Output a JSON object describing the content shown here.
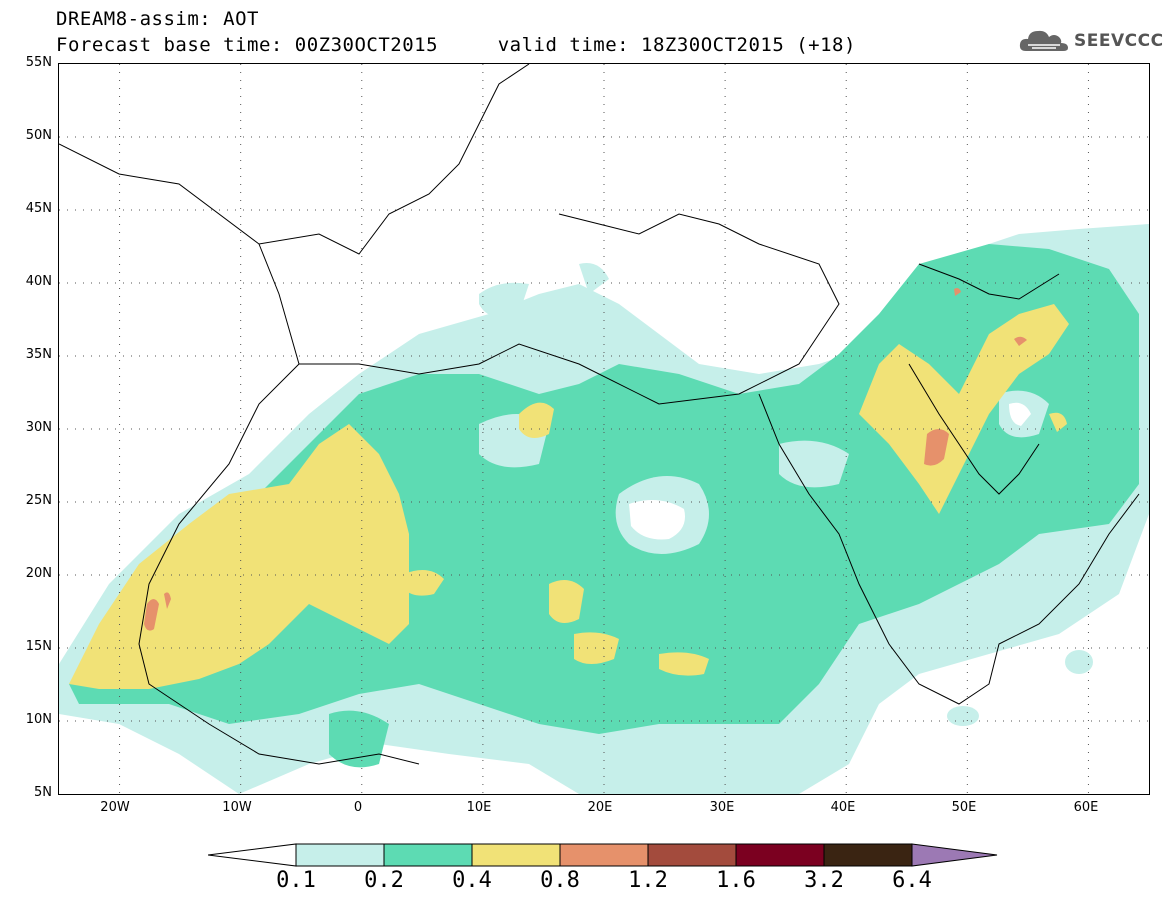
{
  "title": {
    "line1": "DREAM8-assim: AOT",
    "line2": "Forecast base time: 00Z30OCT2015     valid time: 18Z30OCT2015 (+18)"
  },
  "logo": {
    "text": "SEEVCCC",
    "icon": "cloud-icon"
  },
  "map": {
    "region": "North Africa, Middle East and Mediterranean",
    "lon_range": [
      -25,
      65
    ],
    "lat_range": [
      5,
      55
    ],
    "lat_labels": [
      "55N",
      "50N",
      "45N",
      "40N",
      "35N",
      "30N",
      "25N",
      "20N",
      "15N",
      "10N",
      "5N"
    ],
    "lon_labels": [
      "20W",
      "10W",
      "0",
      "10E",
      "20E",
      "30E",
      "40E",
      "50E",
      "60E"
    ],
    "colors": {
      "level_0_1": "#c6efea",
      "level_0_2": "#5ddbb3",
      "level_0_4": "#f1e277",
      "level_0_8": "#e6916b",
      "level_1_2": "#a34b3d",
      "level_1_6": "#7b0020",
      "level_3_2": "#3a2412",
      "level_6_4": "#9c79b4"
    }
  },
  "colorbar": {
    "labels": [
      "0.1",
      "0.2",
      "0.4",
      "0.8",
      "1.2",
      "1.6",
      "3.2",
      "6.4"
    ]
  }
}
